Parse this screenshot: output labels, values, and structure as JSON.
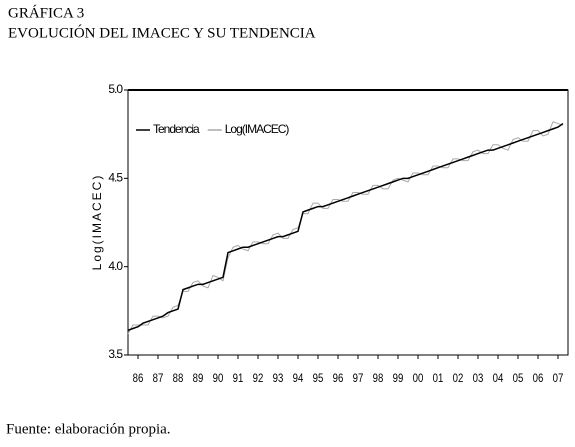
{
  "chart_data": {
    "type": "line",
    "title": "GRÁFICA 3",
    "subtitle": "EVOLUCIÓN DEL IMACEC Y SU TENDENCIA",
    "y_label": "Log(IMACEC)",
    "source": "Fuente: elaboración propia.",
    "x": [
      1986,
      1986.25,
      1986.5,
      1986.75,
      1987,
      1987.25,
      1987.5,
      1987.75,
      1988,
      1988.25,
      1988.5,
      1988.75,
      1989,
      1989.25,
      1989.5,
      1989.75,
      1990,
      1990.25,
      1990.5,
      1990.75,
      1991,
      1991.25,
      1991.5,
      1991.75,
      1992,
      1992.25,
      1992.5,
      1992.75,
      1993,
      1993.25,
      1993.5,
      1993.75,
      1994,
      1994.25,
      1994.5,
      1994.75,
      1995,
      1995.25,
      1995.5,
      1995.75,
      1996,
      1996.25,
      1996.5,
      1996.75,
      1997,
      1997.25,
      1997.5,
      1997.75,
      1998,
      1998.25,
      1998.5,
      1998.75,
      1999,
      1999.25,
      1999.5,
      1999.75,
      2000,
      2000.25,
      2000.5,
      2000.75,
      2001,
      2001.25,
      2001.5,
      2001.75,
      2002,
      2002.25,
      2002.5,
      2002.75,
      2003,
      2003.25,
      2003.5,
      2003.75,
      2004,
      2004.25,
      2004.5,
      2004.75,
      2005,
      2005.25,
      2005.5,
      2005.75,
      2006,
      2006.25,
      2006.5,
      2006.75,
      2007,
      2007.25,
      2007.5,
      2007.75
    ],
    "series": [
      {
        "name": "Tendencia",
        "color": "#000000",
        "values": [
          3.64,
          3.65,
          3.66,
          3.68,
          3.69,
          3.7,
          3.71,
          3.72,
          3.74,
          3.75,
          3.76,
          3.87,
          3.88,
          3.89,
          3.9,
          3.9,
          3.91,
          3.92,
          3.93,
          3.94,
          4.08,
          4.09,
          4.1,
          4.11,
          4.11,
          4.12,
          4.13,
          4.14,
          4.15,
          4.16,
          4.17,
          4.17,
          4.18,
          4.19,
          4.2,
          4.31,
          4.32,
          4.33,
          4.34,
          4.34,
          4.35,
          4.36,
          4.37,
          4.38,
          4.39,
          4.4,
          4.41,
          4.42,
          4.43,
          4.44,
          4.45,
          4.46,
          4.47,
          4.48,
          4.49,
          4.5,
          4.5,
          4.51,
          4.52,
          4.53,
          4.54,
          4.55,
          4.56,
          4.57,
          4.58,
          4.59,
          4.6,
          4.61,
          4.62,
          4.63,
          4.64,
          4.65,
          4.66,
          4.66,
          4.67,
          4.68,
          4.69,
          4.7,
          4.71,
          4.72,
          4.73,
          4.74,
          4.75,
          4.76,
          4.77,
          4.78,
          4.79,
          4.81
        ]
      },
      {
        "name": "Log(IMACEC)",
        "color": "#a8a8a8",
        "values": [
          3.62,
          3.67,
          3.67,
          3.67,
          3.67,
          3.72,
          3.72,
          3.71,
          3.72,
          3.77,
          3.78,
          3.86,
          3.86,
          3.91,
          3.92,
          3.89,
          3.88,
          3.95,
          3.94,
          3.92,
          4.05,
          4.11,
          4.12,
          4.1,
          4.09,
          4.14,
          4.14,
          4.13,
          4.13,
          4.18,
          4.19,
          4.16,
          4.16,
          4.21,
          4.22,
          4.3,
          4.3,
          4.36,
          4.36,
          4.33,
          4.33,
          4.38,
          4.38,
          4.37,
          4.37,
          4.42,
          4.42,
          4.41,
          4.41,
          4.46,
          4.46,
          4.44,
          4.44,
          4.49,
          4.5,
          4.49,
          4.48,
          4.53,
          4.53,
          4.52,
          4.52,
          4.57,
          4.57,
          4.56,
          4.56,
          4.61,
          4.61,
          4.6,
          4.6,
          4.65,
          4.66,
          4.64,
          4.64,
          4.69,
          4.69,
          4.67,
          4.66,
          4.72,
          4.73,
          4.71,
          4.71,
          4.77,
          4.77,
          4.74,
          4.75,
          4.82,
          4.81,
          4.8
        ]
      }
    ],
    "xlim": [
      1986,
      2008
    ],
    "xticks": [
      {
        "value": 1986.5,
        "label": "86"
      },
      {
        "value": 1987.5,
        "label": "87"
      },
      {
        "value": 1988.5,
        "label": "88"
      },
      {
        "value": 1989.5,
        "label": "89"
      },
      {
        "value": 1990.5,
        "label": "90"
      },
      {
        "value": 1991.5,
        "label": "91"
      },
      {
        "value": 1992.5,
        "label": "92"
      },
      {
        "value": 1993.5,
        "label": "93"
      },
      {
        "value": 1994.5,
        "label": "94"
      },
      {
        "value": 1995.5,
        "label": "95"
      },
      {
        "value": 1996.5,
        "label": "96"
      },
      {
        "value": 1997.5,
        "label": "97"
      },
      {
        "value": 1998.5,
        "label": "98"
      },
      {
        "value": 1999.5,
        "label": "99"
      },
      {
        "value": 2000.5,
        "label": "00"
      },
      {
        "value": 2001.5,
        "label": "01"
      },
      {
        "value": 2002.5,
        "label": "02"
      },
      {
        "value": 2003.5,
        "label": "03"
      },
      {
        "value": 2004.5,
        "label": "04"
      },
      {
        "value": 2005.5,
        "label": "05"
      },
      {
        "value": 2006.5,
        "label": "06"
      },
      {
        "value": 2007.5,
        "label": "07"
      }
    ],
    "ylim": [
      3.5,
      5.0
    ],
    "yticks": [
      3.5,
      {
        "value": 4,
        "label": "4.0"
      },
      4.5,
      {
        "value": 5,
        "label": "5.0"
      }
    ],
    "legend": "upper-left"
  }
}
